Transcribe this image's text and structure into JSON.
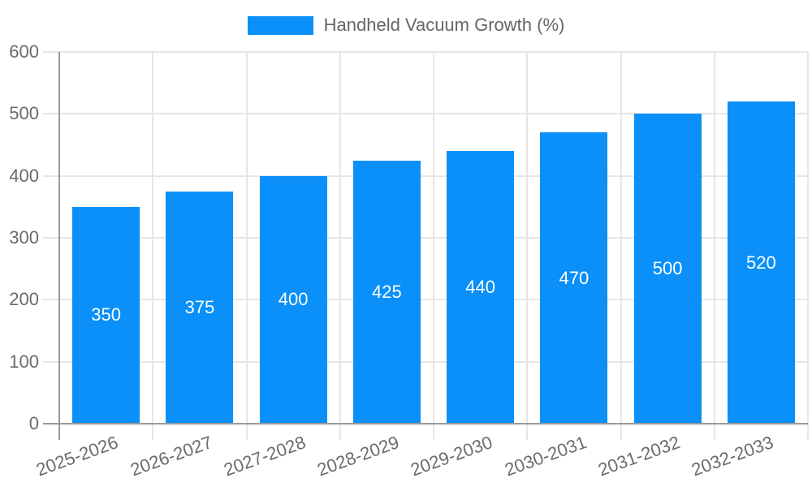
{
  "chart_data": {
    "type": "bar",
    "title": "Handheld Vacuum Growth (%)",
    "legend_label": "Handheld Vacuum Growth (%)",
    "legend_position": "top",
    "categories": [
      "2025-2026",
      "2026-2027",
      "2027-2028",
      "2028-2029",
      "2029-2030",
      "2030-2031",
      "2031-2032",
      "2032-2033"
    ],
    "values": [
      350,
      375,
      400,
      425,
      440,
      470,
      500,
      520
    ],
    "xlabel": "",
    "ylabel": "",
    "ylim": [
      0,
      600
    ],
    "ytick_step": 100,
    "yticks": [
      0,
      100,
      200,
      300,
      400,
      500,
      600
    ],
    "grid": true,
    "value_labels_inside_bars": true,
    "x_label_rotation_deg": -20,
    "colors": {
      "bar": "#0A90F8",
      "bar_value_text": "#ffffff",
      "grid": "#E6E6E6",
      "axis": "#999999",
      "tick_text": "#6B6B6B",
      "legend_text": "#666666",
      "background": "#ffffff"
    }
  }
}
